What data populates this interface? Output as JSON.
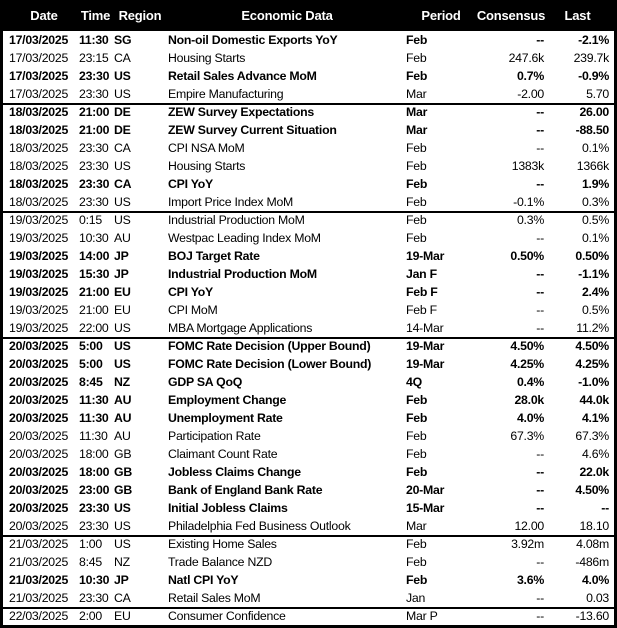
{
  "theme": {
    "header_bg": "#000000",
    "header_text": "#ffffff",
    "text": "#000000",
    "border": "#000000",
    "row_bg": "#ffffff"
  },
  "chart_data": {
    "type": "table",
    "columns": [
      "Date",
      "Time",
      "Region",
      "Economic Data",
      "Period",
      "Consensus",
      "Last"
    ],
    "rows": [
      {
        "date": "17/03/2025",
        "time": "11:30",
        "region": "SG",
        "event": "Non-oil Domestic Exports YoY",
        "period": "Feb",
        "consensus": "--",
        "last": "-2.1%",
        "bold": true,
        "new_group": false
      },
      {
        "date": "17/03/2025",
        "time": "23:15",
        "region": "CA",
        "event": "Housing Starts",
        "period": "Feb",
        "consensus": "247.6k",
        "last": "239.7k",
        "bold": false,
        "new_group": false
      },
      {
        "date": "17/03/2025",
        "time": "23:30",
        "region": "US",
        "event": "Retail Sales Advance MoM",
        "period": "Feb",
        "consensus": "0.7%",
        "last": "-0.9%",
        "bold": true,
        "new_group": false
      },
      {
        "date": "17/03/2025",
        "time": "23:30",
        "region": "US",
        "event": "Empire Manufacturing",
        "period": "Mar",
        "consensus": "-2.00",
        "last": "5.70",
        "bold": false,
        "new_group": false
      },
      {
        "date": "18/03/2025",
        "time": "21:00",
        "region": "DE",
        "event": "ZEW Survey Expectations",
        "period": "Mar",
        "consensus": "--",
        "last": "26.00",
        "bold": true,
        "new_group": true
      },
      {
        "date": "18/03/2025",
        "time": "21:00",
        "region": "DE",
        "event": "ZEW Survey Current Situation",
        "period": "Mar",
        "consensus": "--",
        "last": "-88.50",
        "bold": true,
        "new_group": false
      },
      {
        "date": "18/03/2025",
        "time": "23:30",
        "region": "CA",
        "event": "CPI NSA MoM",
        "period": "Feb",
        "consensus": "--",
        "last": "0.1%",
        "bold": false,
        "new_group": false
      },
      {
        "date": "18/03/2025",
        "time": "23:30",
        "region": "US",
        "event": "Housing Starts",
        "period": "Feb",
        "consensus": "1383k",
        "last": "1366k",
        "bold": false,
        "new_group": false
      },
      {
        "date": "18/03/2025",
        "time": "23:30",
        "region": "CA",
        "event": "CPI YoY",
        "period": "Feb",
        "consensus": "--",
        "last": "1.9%",
        "bold": true,
        "new_group": false
      },
      {
        "date": "18/03/2025",
        "time": "23:30",
        "region": "US",
        "event": "Import Price Index MoM",
        "period": "Feb",
        "consensus": "-0.1%",
        "last": "0.3%",
        "bold": false,
        "new_group": false
      },
      {
        "date": "19/03/2025",
        "time": "0:15",
        "region": "US",
        "event": "Industrial Production MoM",
        "period": "Feb",
        "consensus": "0.3%",
        "last": "0.5%",
        "bold": false,
        "new_group": true
      },
      {
        "date": "19/03/2025",
        "time": "10:30",
        "region": "AU",
        "event": "Westpac Leading Index MoM",
        "period": "Feb",
        "consensus": "--",
        "last": "0.1%",
        "bold": false,
        "new_group": false
      },
      {
        "date": "19/03/2025",
        "time": "14:00",
        "region": "JP",
        "event": "BOJ Target Rate",
        "period": "19-Mar",
        "consensus": "0.50%",
        "last": "0.50%",
        "bold": true,
        "new_group": false
      },
      {
        "date": "19/03/2025",
        "time": "15:30",
        "region": "JP",
        "event": "Industrial Production MoM",
        "period": "Jan F",
        "consensus": "--",
        "last": "-1.1%",
        "bold": true,
        "new_group": false
      },
      {
        "date": "19/03/2025",
        "time": "21:00",
        "region": "EU",
        "event": "CPI YoY",
        "period": "Feb F",
        "consensus": "--",
        "last": "2.4%",
        "bold": true,
        "new_group": false
      },
      {
        "date": "19/03/2025",
        "time": "21:00",
        "region": "EU",
        "event": "CPI MoM",
        "period": "Feb F",
        "consensus": "--",
        "last": "0.5%",
        "bold": false,
        "new_group": false
      },
      {
        "date": "19/03/2025",
        "time": "22:00",
        "region": "US",
        "event": "MBA Mortgage Applications",
        "period": "14-Mar",
        "consensus": "--",
        "last": "11.2%",
        "bold": false,
        "new_group": false
      },
      {
        "date": "20/03/2025",
        "time": "5:00",
        "region": "US",
        "event": "FOMC Rate Decision (Upper Bound)",
        "period": "19-Mar",
        "consensus": "4.50%",
        "last": "4.50%",
        "bold": true,
        "new_group": true
      },
      {
        "date": "20/03/2025",
        "time": "5:00",
        "region": "US",
        "event": "FOMC Rate Decision (Lower Bound)",
        "period": "19-Mar",
        "consensus": "4.25%",
        "last": "4.25%",
        "bold": true,
        "new_group": false
      },
      {
        "date": "20/03/2025",
        "time": "8:45",
        "region": "NZ",
        "event": "GDP SA QoQ",
        "period": "4Q",
        "consensus": "0.4%",
        "last": "-1.0%",
        "bold": true,
        "new_group": false
      },
      {
        "date": "20/03/2025",
        "time": "11:30",
        "region": "AU",
        "event": "Employment Change",
        "period": "Feb",
        "consensus": "28.0k",
        "last": "44.0k",
        "bold": true,
        "new_group": false
      },
      {
        "date": "20/03/2025",
        "time": "11:30",
        "region": "AU",
        "event": "Unemployment Rate",
        "period": "Feb",
        "consensus": "4.0%",
        "last": "4.1%",
        "bold": true,
        "new_group": false
      },
      {
        "date": "20/03/2025",
        "time": "11:30",
        "region": "AU",
        "event": "Participation Rate",
        "period": "Feb",
        "consensus": "67.3%",
        "last": "67.3%",
        "bold": false,
        "new_group": false
      },
      {
        "date": "20/03/2025",
        "time": "18:00",
        "region": "GB",
        "event": "Claimant Count Rate",
        "period": "Feb",
        "consensus": "--",
        "last": "4.6%",
        "bold": false,
        "new_group": false
      },
      {
        "date": "20/03/2025",
        "time": "18:00",
        "region": "GB",
        "event": "Jobless Claims Change",
        "period": "Feb",
        "consensus": "--",
        "last": "22.0k",
        "bold": true,
        "new_group": false
      },
      {
        "date": "20/03/2025",
        "time": "23:00",
        "region": "GB",
        "event": "Bank of England Bank Rate",
        "period": "20-Mar",
        "consensus": "--",
        "last": "4.50%",
        "bold": true,
        "new_group": false
      },
      {
        "date": "20/03/2025",
        "time": "23:30",
        "region": "US",
        "event": "Initial Jobless Claims",
        "period": "15-Mar",
        "consensus": "--",
        "last": "--",
        "bold": true,
        "new_group": false
      },
      {
        "date": "20/03/2025",
        "time": "23:30",
        "region": "US",
        "event": "Philadelphia Fed Business Outlook",
        "period": "Mar",
        "consensus": "12.00",
        "last": "18.10",
        "bold": false,
        "new_group": false
      },
      {
        "date": "21/03/2025",
        "time": "1:00",
        "region": "US",
        "event": "Existing Home Sales",
        "period": "Feb",
        "consensus": "3.92m",
        "last": "4.08m",
        "bold": false,
        "new_group": true
      },
      {
        "date": "21/03/2025",
        "time": "8:45",
        "region": "NZ",
        "event": "Trade Balance NZD",
        "period": "Feb",
        "consensus": "--",
        "last": "-486m",
        "bold": false,
        "new_group": false
      },
      {
        "date": "21/03/2025",
        "time": "10:30",
        "region": "JP",
        "event": "Natl CPI YoY",
        "period": "Feb",
        "consensus": "3.6%",
        "last": "4.0%",
        "bold": true,
        "new_group": false
      },
      {
        "date": "21/03/2025",
        "time": "23:30",
        "region": "CA",
        "event": "Retail Sales MoM",
        "period": "Jan",
        "consensus": "--",
        "last": "0.03",
        "bold": false,
        "new_group": false
      },
      {
        "date": "22/03/2025",
        "time": "2:00",
        "region": "EU",
        "event": "Consumer Confidence",
        "period": "Mar P",
        "consensus": "--",
        "last": "-13.60",
        "bold": false,
        "new_group": true
      }
    ]
  }
}
